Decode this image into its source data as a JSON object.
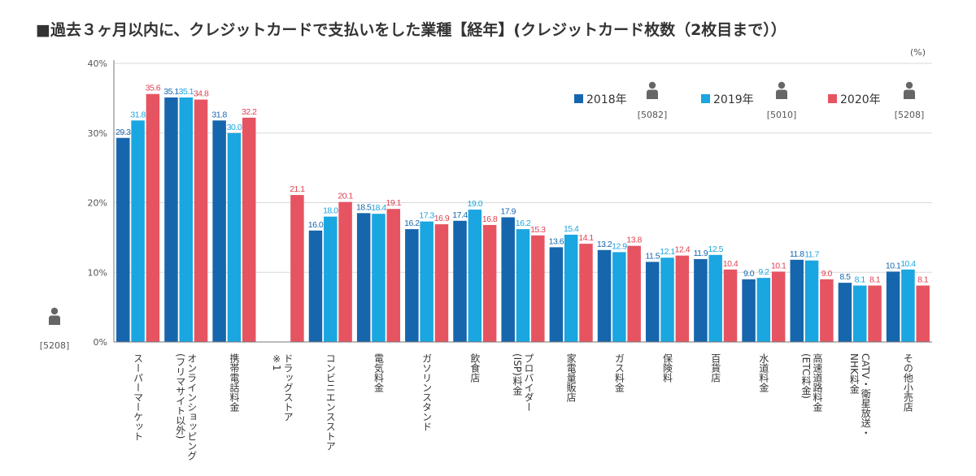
{
  "chart_data": {
    "type": "bar",
    "title": "■過去３ヶ月以内に、クレジットカードで支払いをした業種【経年】(クレジットカード枚数（2枚目まで））",
    "unit": "(%)",
    "ylim": [
      0,
      40
    ],
    "yticks": [
      "0%",
      "10%",
      "20%",
      "30%",
      "40%"
    ],
    "ytick_values": [
      0,
      10,
      20,
      30,
      40
    ],
    "axis_sample_size": "[5208]",
    "categories": [
      [
        "スーパーマーケット"
      ],
      [
        "オンラインショッピング",
        "(フリマサイト以外)"
      ],
      [
        "携帯電話料金"
      ],
      [
        "ドラッグストア",
        "※1"
      ],
      [
        "コンビニエンスストア"
      ],
      [
        "電気料金"
      ],
      [
        "ガソリンスタンド"
      ],
      [
        "飲食店"
      ],
      [
        "プロバイダー",
        "(ISP)料金"
      ],
      [
        "家電量販店"
      ],
      [
        "ガス料金"
      ],
      [
        "保険料"
      ],
      [
        "百貨店"
      ],
      [
        "水道料金"
      ],
      [
        "高速道路料金",
        "(ETC料金)"
      ],
      [
        "CATV・衛星放送・",
        "NHK料金"
      ],
      [
        "その他小売店"
      ]
    ],
    "series": [
      {
        "name": "2018年",
        "sample": "[5082]",
        "color": "#1666ad",
        "values": [
          29.3,
          35.1,
          31.8,
          null,
          16.0,
          18.5,
          16.2,
          17.4,
          17.9,
          13.6,
          13.2,
          11.5,
          11.9,
          9.0,
          11.8,
          8.5,
          10.1
        ]
      },
      {
        "name": "2019年",
        "sample": "[5010]",
        "color": "#1aa6e0",
        "values": [
          31.8,
          35.1,
          30.0,
          null,
          18.0,
          18.4,
          17.3,
          19.0,
          16.2,
          15.4,
          12.9,
          12.1,
          12.5,
          9.2,
          11.7,
          8.1,
          10.4
        ]
      },
      {
        "name": "2020年",
        "sample": "[5208]",
        "color": "#e65462",
        "values": [
          35.6,
          34.8,
          32.2,
          21.1,
          20.1,
          19.1,
          16.9,
          16.8,
          15.3,
          14.1,
          13.8,
          12.4,
          10.4,
          10.1,
          9.0,
          8.1,
          8.1
        ]
      }
    ]
  }
}
